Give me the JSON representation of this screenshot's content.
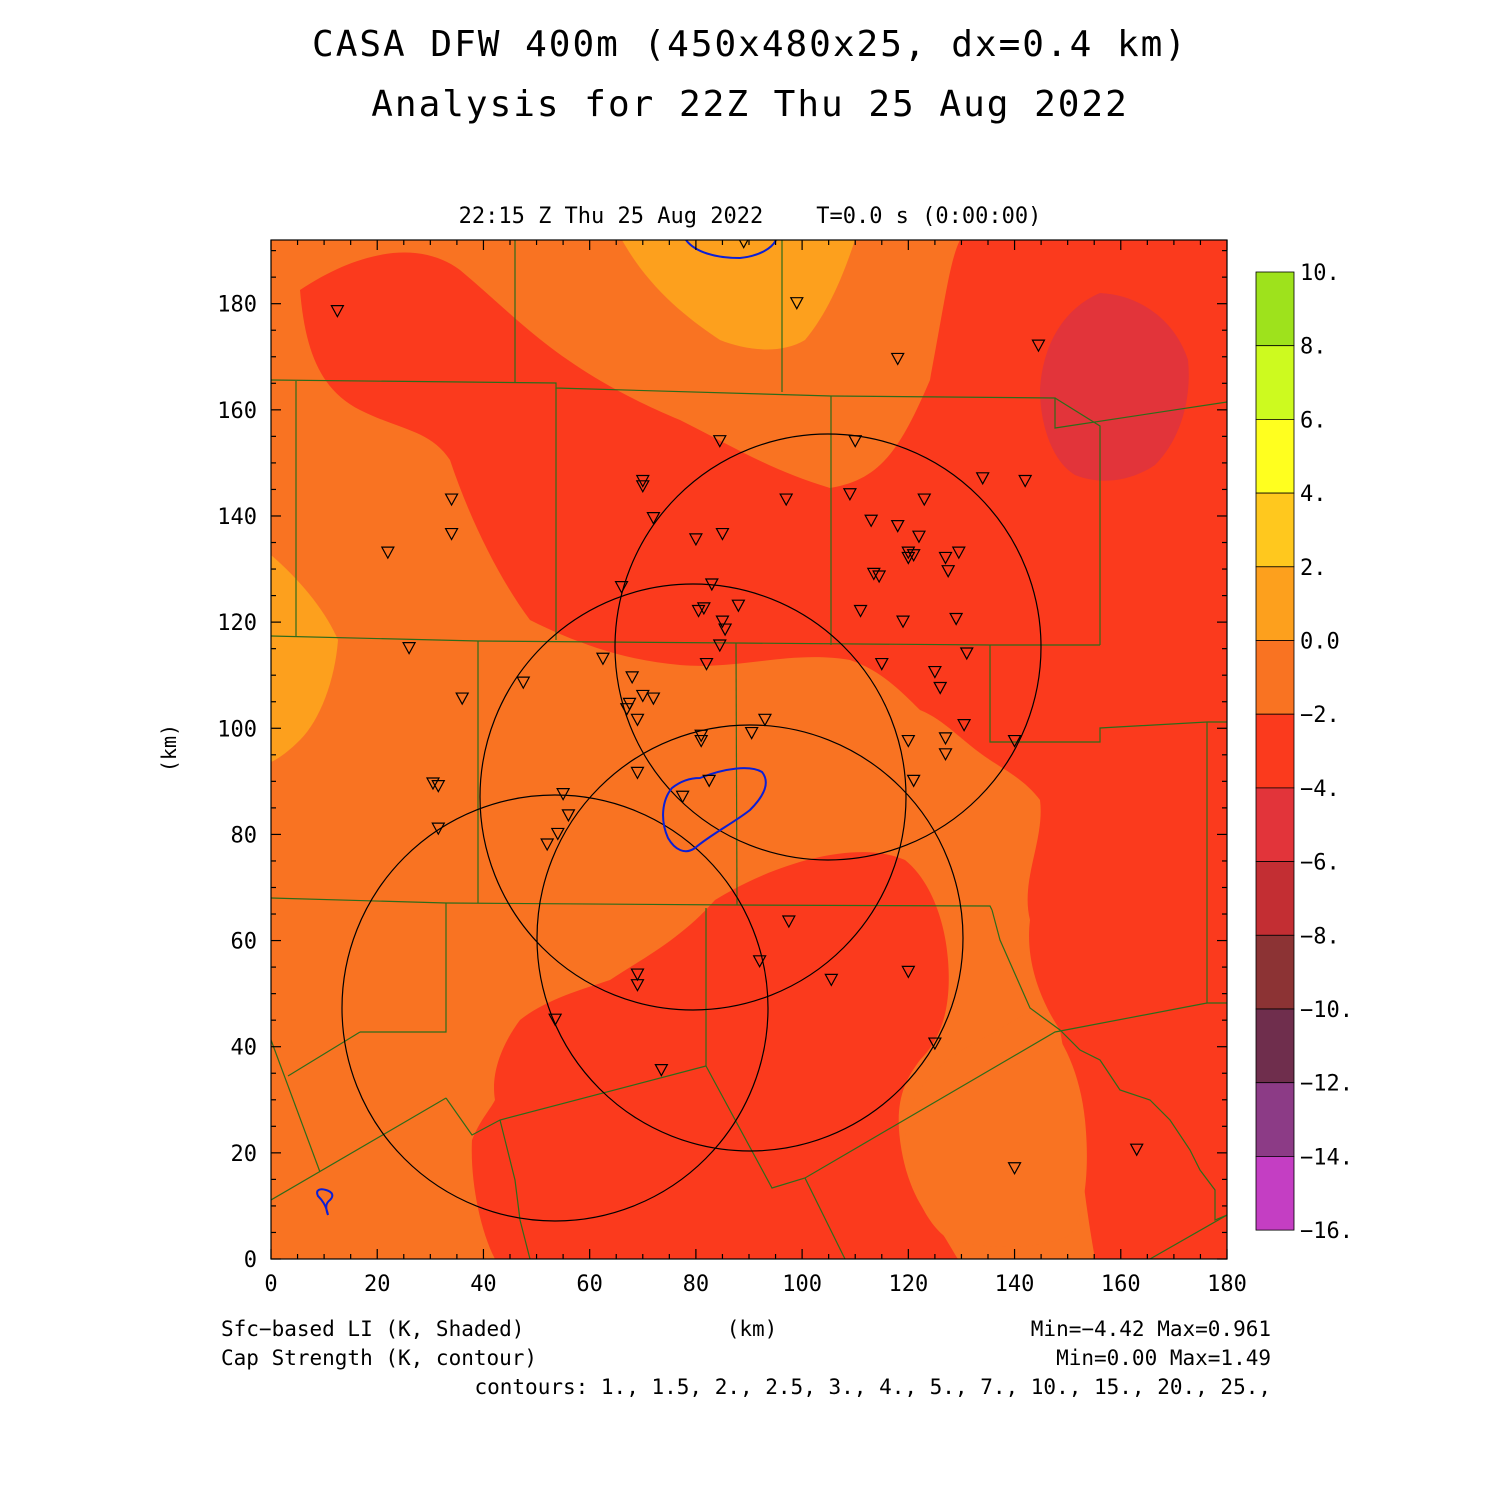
{
  "title": {
    "line1": "CASA DFW 400m (450x480x25, dx=0.4 km)",
    "line2": "Analysis for 22Z Thu 25 Aug 2022"
  },
  "time_label": "22:15 Z Thu 25 Aug 2022    T=0.0 s (0:00:00)",
  "axes": {
    "x_label": "(km)",
    "y_label": "(km)",
    "x_ticks": [
      "0",
      "20",
      "40",
      "60",
      "80",
      "100",
      "120",
      "140",
      "160",
      "180"
    ],
    "y_ticks": [
      "0",
      "20",
      "40",
      "60",
      "80",
      "100",
      "120",
      "140",
      "160",
      "180"
    ],
    "x_range": [
      0,
      180
    ],
    "y_range": [
      0,
      192
    ]
  },
  "colorbar": {
    "labels": [
      "10.",
      "8.",
      "6.",
      "4.",
      "2.",
      "0.0",
      "−2.",
      "−4.",
      "−6.",
      "−8.",
      "−10.",
      "−12.",
      "−14.",
      "−16."
    ],
    "colors": [
      "#9ee21c",
      "#cdfa1f",
      "#ffff1f",
      "#ffc81e",
      "#fda01d",
      "#f97322",
      "#fb3a1d",
      "#e2343a",
      "#c32e33",
      "#8c3334",
      "#6f2e4d",
      "#8c3b86",
      "#c43ec3",
      "#de41e0"
    ]
  },
  "field_colors": {
    "li_pos_0_2": "#fda01d",
    "li_neg2_0": "#f97322",
    "li_neg4_neg2": "#fb3a1d",
    "li_neg6_neg4": "#e2343a",
    "county_lines": "#2e6b1a",
    "cap_contour": "#0b1fd6",
    "radar_rings": "#000000"
  },
  "footer": {
    "shaded_label": "Sfc−based LI (K, Shaded)",
    "contour_label": "Cap Strength (K, contour)",
    "units_label": "(km)",
    "shaded_range": "Min=−4.42 Max=0.961",
    "contour_range": "Min=0.00 Max=1.49",
    "contour_levels": "contours: 1., 1.5, 2., 2.5, 3., 4., 5., 7., 10., 15., 20., 25.,"
  },
  "stations": [
    [
      12.5,
      178.5
    ],
    [
      34,
      143
    ],
    [
      34,
      136.5
    ],
    [
      22,
      133
    ],
    [
      36,
      105.5
    ],
    [
      26,
      115
    ],
    [
      30.5,
      89.5
    ],
    [
      31.5,
      89
    ],
    [
      31.5,
      81
    ],
    [
      47.5,
      108.5
    ],
    [
      55,
      87.5
    ],
    [
      56,
      83.5
    ],
    [
      54,
      80
    ],
    [
      52,
      78
    ],
    [
      53.5,
      45
    ],
    [
      62.5,
      113
    ],
    [
      66,
      126.5
    ],
    [
      67.5,
      104.5
    ],
    [
      67,
      103.5
    ],
    [
      68,
      109.5
    ],
    [
      69,
      101.5
    ],
    [
      70,
      106
    ],
    [
      72,
      105.5
    ],
    [
      69,
      91.5
    ],
    [
      69,
      53.5
    ],
    [
      69,
      51.5
    ],
    [
      73.5,
      35.5
    ],
    [
      77.5,
      87
    ],
    [
      70,
      146.5
    ],
    [
      70,
      145.5
    ],
    [
      72,
      139.5
    ],
    [
      80,
      135.5
    ],
    [
      85,
      136.5
    ],
    [
      83,
      127
    ],
    [
      80.5,
      122
    ],
    [
      81.5,
      122.5
    ],
    [
      85,
      120
    ],
    [
      85.5,
      118.5
    ],
    [
      84.5,
      115.5
    ],
    [
      82,
      112
    ],
    [
      88,
      123
    ],
    [
      81,
      98.5
    ],
    [
      81,
      97.5
    ],
    [
      82.5,
      90
    ],
    [
      84.5,
      154
    ],
    [
      89,
      191.5
    ],
    [
      99,
      180
    ],
    [
      90.5,
      99
    ],
    [
      93,
      101.5
    ],
    [
      92,
      56
    ],
    [
      97.5,
      63.5
    ],
    [
      97,
      143
    ],
    [
      105.5,
      52.5
    ],
    [
      109,
      144
    ],
    [
      110,
      154
    ],
    [
      111,
      122
    ],
    [
      113,
      139
    ],
    [
      113.5,
      129
    ],
    [
      114.5,
      128.5
    ],
    [
      115,
      112
    ],
    [
      118,
      138
    ],
    [
      118,
      169.5
    ],
    [
      119,
      120
    ],
    [
      120,
      133
    ],
    [
      120,
      132
    ],
    [
      121,
      132.5
    ],
    [
      122,
      136
    ],
    [
      123,
      143
    ],
    [
      120,
      97.5
    ],
    [
      121,
      90
    ],
    [
      120,
      54
    ],
    [
      125,
      40.5
    ],
    [
      125,
      110.5
    ],
    [
      126,
      107.5
    ],
    [
      127,
      132
    ],
    [
      127.5,
      129.5
    ],
    [
      127,
      98
    ],
    [
      127,
      95
    ],
    [
      129,
      120.5
    ],
    [
      129.5,
      133
    ],
    [
      130.5,
      100.5
    ],
    [
      131,
      114
    ],
    [
      134,
      147
    ],
    [
      140,
      97.5
    ],
    [
      142,
      146.5
    ],
    [
      144.5,
      172
    ],
    [
      140,
      17
    ],
    [
      163,
      20.5
    ]
  ]
}
